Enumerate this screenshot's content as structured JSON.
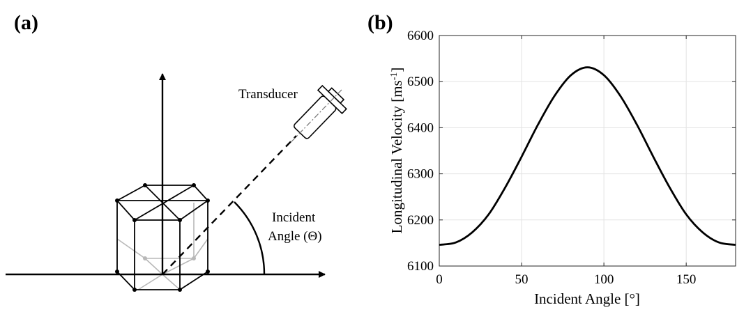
{
  "panel_a": {
    "label": "(a)",
    "transducer_label": "Transducer",
    "angle_label_line1": "Incident",
    "angle_label_line2": "Angle (Θ)"
  },
  "panel_b": {
    "label": "(b)"
  },
  "chart_data": {
    "type": "line",
    "xlabel": "Incident Angle [°]",
    "ylabel_main": "Longitudinal Velocity [ms",
    "ylabel_sup": "-1",
    "ylabel_end": "]",
    "xlim": [
      0,
      180
    ],
    "ylim": [
      6100,
      6600
    ],
    "xticks": [
      0,
      50,
      100,
      150
    ],
    "yticks": [
      6100,
      6200,
      6300,
      6400,
      6500,
      6600
    ],
    "grid": true,
    "series": [
      {
        "x": [
          0,
          10,
          20,
          30,
          40,
          50,
          60,
          70,
          80,
          90,
          100,
          110,
          120,
          130,
          140,
          150,
          160,
          170,
          180
        ],
        "values": [
          6146,
          6151,
          6173,
          6212,
          6270,
          6337,
          6407,
          6469,
          6514,
          6531,
          6514,
          6469,
          6407,
          6337,
          6270,
          6212,
          6173,
          6151,
          6146
        ],
        "color": "#000000"
      }
    ]
  }
}
